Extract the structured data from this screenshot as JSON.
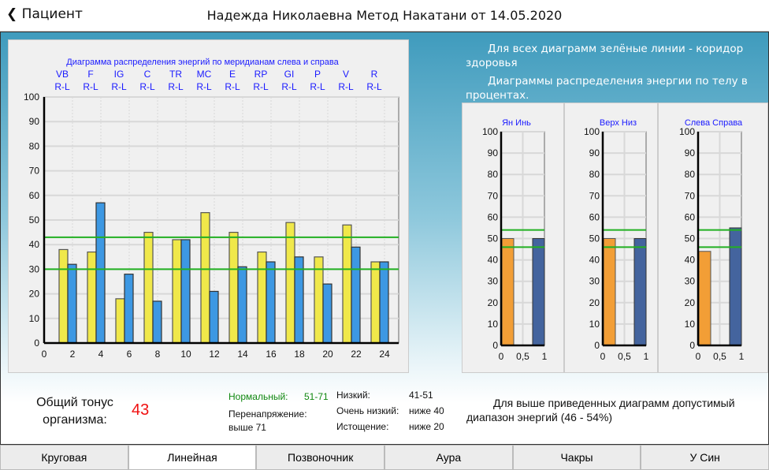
{
  "header": {
    "back_label": "Пациент",
    "title": "Надежда Николаевна  Метод Накатани от 14.05.2020"
  },
  "notes": {
    "green_lines": "Для всех диаграмм зелёные линии - коридор здоровья",
    "body_percent": "Диаграммы распределения энергии по телу в процентах.",
    "range": "Для выше приведенных диаграмм допустимый диапазон энергий  (46 - 54%)"
  },
  "tonus": {
    "label_line1": "Общий тонус",
    "label_line2": "организма:",
    "value": "43"
  },
  "legend": {
    "normal_label": "Нормальный:",
    "normal_value": "51-71",
    "over_label": "Перенапряжение:",
    "over_value": "выше 71",
    "low_label": "Низкий:",
    "low_value": "41-51",
    "vlow_label": "Очень низкий:",
    "vlow_value": "ниже 40",
    "exh_label": "Истощение:",
    "exh_value": "ниже 20"
  },
  "tabs": [
    {
      "label": "Круговая"
    },
    {
      "label": "Линейная",
      "active": true
    },
    {
      "label": "Позвоночник"
    },
    {
      "label": "Аура"
    },
    {
      "label": "Чакры"
    },
    {
      "label": "У Син"
    }
  ],
  "colors": {
    "left": "#f0e84a",
    "right": "#3d98e3",
    "green": "#22b022",
    "orange": "#f29e36",
    "navy": "#44649e"
  },
  "chart_data": [
    {
      "type": "bar",
      "title": "Диаграмма распределения энергий по меридианам слева и справа",
      "categories": [
        "VB",
        "F",
        "IG",
        "C",
        "TR",
        "MC",
        "E",
        "RP",
        "GI",
        "P",
        "V",
        "R"
      ],
      "sublabel": "R-L",
      "series": [
        {
          "name": "R",
          "values": [
            38,
            37,
            18,
            45,
            42,
            53,
            45,
            37,
            49,
            35,
            48,
            33
          ]
        },
        {
          "name": "L",
          "values": [
            32,
            57,
            28,
            17,
            42,
            21,
            31,
            33,
            35,
            24,
            39,
            33
          ]
        }
      ],
      "xlim": [
        0,
        25
      ],
      "xticks": [
        0,
        2,
        4,
        6,
        8,
        10,
        12,
        14,
        16,
        18,
        20,
        22,
        24
      ],
      "ylim": [
        0,
        100
      ],
      "yticks": [
        0,
        10,
        20,
        30,
        40,
        50,
        60,
        70,
        80,
        90,
        100
      ],
      "green_lines": [
        30,
        43
      ]
    },
    {
      "type": "bar",
      "title": "Ян  Инь",
      "values": [
        50,
        50
      ],
      "ylim": [
        0,
        100
      ],
      "xticks": [
        "0",
        "0,5",
        "1"
      ],
      "green_lines": [
        46,
        54
      ]
    },
    {
      "type": "bar",
      "title": "Верх Низ",
      "values": [
        50,
        50
      ],
      "ylim": [
        0,
        100
      ],
      "xticks": [
        "0",
        "0,5",
        "1"
      ],
      "green_lines": [
        46,
        54
      ]
    },
    {
      "type": "bar",
      "title": "Слева Справа",
      "values": [
        44,
        55
      ],
      "ylim": [
        0,
        100
      ],
      "xticks": [
        "0",
        "0,5",
        "1"
      ],
      "green_lines": [
        46,
        54
      ]
    }
  ]
}
